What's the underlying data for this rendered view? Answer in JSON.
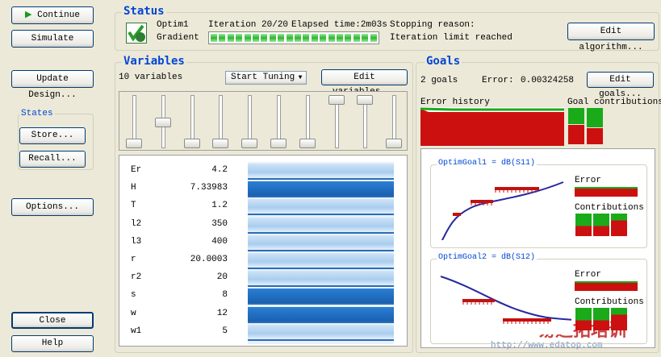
{
  "buttons": {
    "continue": "Continue",
    "simulate": "Simulate",
    "update_design": "Update Design...",
    "options": "Options...",
    "close": "Close",
    "help": "Help"
  },
  "states": {
    "title": "States",
    "store": "Store...",
    "recall": "Recall..."
  },
  "status": {
    "title": "Status",
    "optimizer": "Optim1",
    "method": "Gradient",
    "iteration": "Iteration 20/20",
    "elapsed": "Elapsed time:2m03s",
    "stopping_label": "Stopping reason:",
    "stopping_reason": "Iteration limit reached",
    "edit_button": "Edit algorithm..."
  },
  "variables": {
    "title": "Variables",
    "count": "10 variables",
    "tuning_button": "Start Tuning",
    "edit_button": "Edit variables...",
    "rows": [
      [
        "Er",
        "4.2"
      ],
      [
        "H",
        "7.33983"
      ],
      [
        "T",
        "1.2"
      ],
      [
        "l2",
        "350"
      ],
      [
        "l3",
        "400"
      ],
      [
        "r",
        "20.0003"
      ],
      [
        "r2",
        "20"
      ],
      [
        "s",
        "8"
      ],
      [
        "w",
        "12"
      ],
      [
        "w1",
        "5"
      ]
    ]
  },
  "goals": {
    "title": "Goals",
    "count": "2 goals",
    "error_label": "Error:",
    "error_value": "0.00324258",
    "edit_button": "Edit goals...",
    "history_label": "Error history",
    "contributions_label": "Goal contributions",
    "goal_panels": [
      {
        "title": "OptimGoal1 = dB(S11)",
        "error_label": "Error",
        "contributions_label": "Contributions"
      },
      {
        "title": "OptimGoal2 = dB(S12)",
        "error_label": "Error",
        "contributions_label": "Contributions"
      }
    ]
  },
  "watermark": {
    "text": "易迪拓培训",
    "url": "http://www.edatop.com"
  }
}
